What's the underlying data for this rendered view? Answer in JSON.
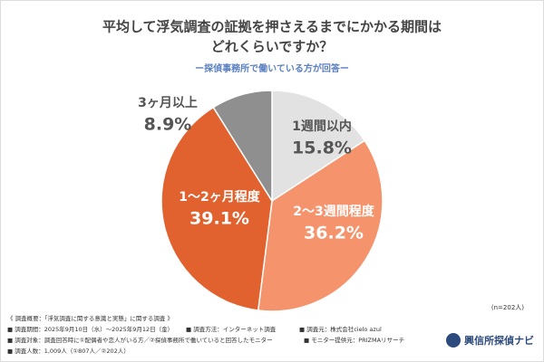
{
  "chart_data": {
    "type": "pie",
    "title_lines": [
      "平均して浮気調査の証拠を押さえるまでにかかる期間は",
      "どれくらいですか？"
    ],
    "subtitle": "ー探偵事務所で働いている方が回答ー",
    "categories": [
      "1週間以内",
      "2〜3週間程度",
      "1〜2ヶ月程度",
      "3ヶ月以上"
    ],
    "values": [
      15.8,
      36.2,
      39.1,
      8.9
    ],
    "value_labels": [
      "15.8%",
      "36.2%",
      "39.1%",
      "8.9%"
    ],
    "colors": [
      "#e2e2e2",
      "#f4936c",
      "#e1622f",
      "#8f8f8f"
    ],
    "sample_note": "(n=202人)"
  },
  "survey": {
    "heading": "《 調査概要：「浮気調査に関する意識と実態」に関する調査 》",
    "period": "■ 調査期間：2025年9月10日（水）〜2025年9月12日（金）",
    "method": "■ 調査方法：インターネット調査",
    "source": "■ 調査元：株式会社cielo azul",
    "target": "■ 調査対象：調査回答時に①配偶者や恋人がいる方／②探偵事務所で働いていると回答したモニター",
    "provider": "■ モニター提供元：PRIZMAリサーチ",
    "count": "■ 調査人数：1,009人（①807人／②202人）"
  },
  "logo": "興信所探偵ナビ"
}
